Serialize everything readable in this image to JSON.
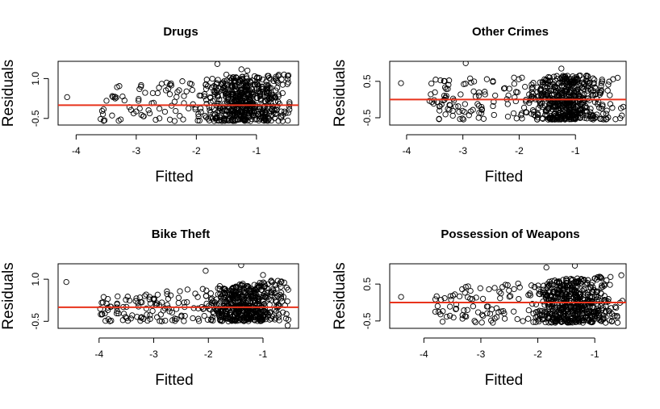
{
  "colors": {
    "reference_line": "#e8331c",
    "points": "#000000"
  },
  "chart_data": [
    {
      "type": "scatter",
      "title": "Drugs",
      "xlabel": "Fitted",
      "ylabel": "Residuals",
      "xlim": [
        -4.3,
        -0.3
      ],
      "ylim": [
        -0.75,
        1.65
      ],
      "xticks": [
        -4,
        -3,
        -2,
        -1
      ],
      "xtick_labels": [
        "-4",
        "-3",
        "-2",
        "-1"
      ],
      "yticks": [
        -0.5,
        1.0
      ],
      "ytick_labels": [
        "-0.5",
        "1.0"
      ],
      "reference_line_y": 0,
      "grid": false,
      "point_cloud": {
        "n": 620,
        "seed": 11,
        "x_range": [
          -3.6,
          -0.45
        ],
        "x_center": -1.2,
        "x_spread": 0.55,
        "y_min": -0.6,
        "y_max_low": 0.7,
        "y_max_high": 1.2,
        "outliers": [
          [
            -4.15,
            0.3
          ],
          [
            -1.65,
            1.55
          ],
          [
            -1.25,
            1.35
          ],
          [
            -1.15,
            1.3
          ],
          [
            -0.8,
            1.1
          ],
          [
            -1.5,
            1.15
          ]
        ]
      }
    },
    {
      "type": "scatter",
      "title": "Other Crimes",
      "xlabel": "Fitted",
      "ylabel": "Residuals",
      "xlim": [
        -4.3,
        -0.1
      ],
      "ylim": [
        -0.7,
        1.05
      ],
      "xticks": [
        -4,
        -3,
        -2,
        -1
      ],
      "xtick_labels": [
        "-4",
        "-3",
        "-2",
        "-1"
      ],
      "yticks": [
        -0.5,
        0.5
      ],
      "ytick_labels": [
        "-0.5",
        "0.5"
      ],
      "reference_line_y": 0,
      "grid": false,
      "point_cloud": {
        "n": 620,
        "seed": 23,
        "x_range": [
          -3.6,
          -0.15
        ],
        "x_center": -1.15,
        "x_spread": 0.55,
        "y_min": -0.55,
        "y_max_low": 0.55,
        "y_max_high": 0.7,
        "outliers": [
          [
            -4.1,
            0.45
          ],
          [
            -2.95,
            1.0
          ],
          [
            -1.95,
            0.6
          ],
          [
            -1.25,
            0.85
          ],
          [
            -0.15,
            -0.2
          ]
        ]
      }
    },
    {
      "type": "scatter",
      "title": "Bike Theft",
      "xlabel": "Fitted",
      "ylabel": "Residuals",
      "xlim": [
        -4.75,
        -0.35
      ],
      "ylim": [
        -0.75,
        1.55
      ],
      "xticks": [
        -4,
        -3,
        -2,
        -1
      ],
      "xtick_labels": [
        "-4",
        "-3",
        "-2",
        "-1"
      ],
      "yticks": [
        -0.5,
        1.0
      ],
      "ytick_labels": [
        "-0.5",
        "1.0"
      ],
      "reference_line_y": 0,
      "grid": false,
      "point_cloud": {
        "n": 620,
        "seed": 37,
        "x_range": [
          -4.0,
          -0.5
        ],
        "x_center": -1.35,
        "x_spread": 0.6,
        "y_min": -0.5,
        "y_max_low": 0.35,
        "y_max_high": 1.0,
        "outliers": [
          [
            -4.6,
            0.9
          ],
          [
            -2.05,
            1.3
          ],
          [
            -1.4,
            1.5
          ],
          [
            -1.0,
            1.15
          ],
          [
            -0.85,
            0.95
          ],
          [
            -0.55,
            -0.65
          ]
        ]
      }
    },
    {
      "type": "scatter",
      "title": "Possession of Weapons",
      "xlabel": "Fitted",
      "ylabel": "Residuals",
      "xlim": [
        -4.6,
        -0.45
      ],
      "ylim": [
        -0.7,
        1.05
      ],
      "xticks": [
        -4,
        -3,
        -2,
        -1
      ],
      "xtick_labels": [
        "-4",
        "-3",
        "-2",
        "-1"
      ],
      "yticks": [
        -0.5,
        0.5
      ],
      "ytick_labels": [
        "-0.5",
        "0.5"
      ],
      "reference_line_y": 0,
      "grid": false,
      "point_cloud": {
        "n": 620,
        "seed": 53,
        "x_range": [
          -3.85,
          -0.5
        ],
        "x_center": -1.4,
        "x_spread": 0.6,
        "y_min": -0.55,
        "y_max_low": 0.4,
        "y_max_high": 0.75,
        "outliers": [
          [
            -4.4,
            0.15
          ],
          [
            -1.85,
            0.95
          ],
          [
            -1.35,
            1.0
          ],
          [
            -0.6,
            -0.55
          ],
          [
            -0.7,
            -0.5
          ]
        ]
      }
    }
  ]
}
